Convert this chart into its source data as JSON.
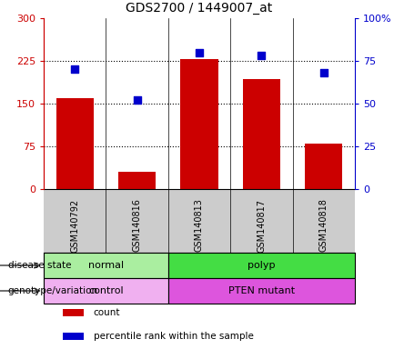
{
  "title": "GDS2700 / 1449007_at",
  "samples": [
    "GSM140792",
    "GSM140816",
    "GSM140813",
    "GSM140817",
    "GSM140818"
  ],
  "counts": [
    160,
    30,
    228,
    193,
    80
  ],
  "percentile_ranks": [
    70,
    52,
    80,
    78,
    68
  ],
  "ylim_left": [
    0,
    300
  ],
  "ylim_right": [
    0,
    100
  ],
  "yticks_left": [
    0,
    75,
    150,
    225,
    300
  ],
  "yticks_right": [
    0,
    25,
    50,
    75,
    100
  ],
  "ytick_labels_left": [
    "0",
    "75",
    "150",
    "225",
    "300"
  ],
  "ytick_labels_right": [
    "0",
    "25",
    "50",
    "75",
    "100%"
  ],
  "hlines": [
    75,
    150,
    225
  ],
  "bar_color": "#cc0000",
  "scatter_color": "#0000cc",
  "disease_state": [
    {
      "label": "normal",
      "span": [
        0,
        2
      ],
      "color": "#aaeea0"
    },
    {
      "label": "polyp",
      "span": [
        2,
        5
      ],
      "color": "#44dd44"
    }
  ],
  "genotype": [
    {
      "label": "control",
      "span": [
        0,
        2
      ],
      "color": "#f0b0f0"
    },
    {
      "label": "PTEN mutant",
      "span": [
        2,
        5
      ],
      "color": "#dd55dd"
    }
  ],
  "left_labels": [
    "disease state",
    "genotype/variation"
  ],
  "legend": [
    {
      "color": "#cc0000",
      "label": "count"
    },
    {
      "color": "#0000cc",
      "label": "percentile rank within the sample"
    }
  ],
  "background_color": "#ffffff",
  "tick_area_color": "#cccccc",
  "normal_green": "#aaeea0",
  "polyp_green": "#44dd44",
  "control_pink": "#f0b0f0",
  "pten_pink": "#dd55dd"
}
